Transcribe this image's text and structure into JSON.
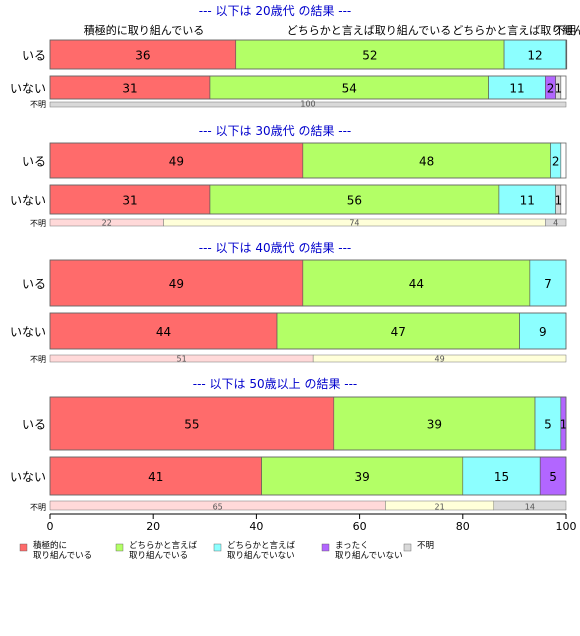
{
  "chart_data": {
    "type": "bar",
    "orientation": "horizontal",
    "stacked": true,
    "xlim": [
      0,
      100
    ],
    "x_ticks": [
      0,
      20,
      40,
      60,
      80,
      100
    ],
    "categories": [
      "積極的に\n取り組んでいる",
      "どちらかと言えば\n取り組んでいる",
      "どちらかと言えば\n取り組んでいない",
      "まったく\n取り組んでいない",
      "不明"
    ],
    "header_labels": [
      "積極的に取り組んでいる",
      "どちらかと言えば取り組んでいる",
      "どちらかと言えば取り組んでいない",
      "不明"
    ],
    "colors": [
      "#ff6b6b",
      "#b3ff66",
      "#8cffff",
      "#b266ff",
      "#d9d9d9"
    ],
    "unknown_colors": [
      "#ffd9d9",
      "#ffffd9",
      "#d9d9d9"
    ],
    "legend_position": "bottom",
    "groups": [
      {
        "title": "--- 以下は 20歳代 の結果 ---",
        "rows": [
          {
            "label": "いる",
            "values": [
              36,
              52,
              12,
              0,
              0.4
            ]
          },
          {
            "label": "いない",
            "values": [
              31,
              54,
              11,
              2,
              1
            ]
          }
        ],
        "unknown": {
          "label": "不明",
          "values": [
            0,
            0,
            100
          ]
        }
      },
      {
        "title": "--- 以下は 30歳代 の結果 ---",
        "rows": [
          {
            "label": "いる",
            "values": [
              49,
              48,
              2,
              0,
              0
            ]
          },
          {
            "label": "いない",
            "values": [
              31,
              56,
              11,
              0,
              1
            ]
          }
        ],
        "unknown": {
          "label": "不明",
          "values": [
            22,
            74,
            4
          ]
        }
      },
      {
        "title": "--- 以下は 40歳代 の結果 ---",
        "rows": [
          {
            "label": "いる",
            "values": [
              49,
              44,
              7,
              0,
              0
            ]
          },
          {
            "label": "いない",
            "values": [
              44,
              47,
              9,
              0,
              0
            ]
          }
        ],
        "unknown": {
          "label": "不明",
          "values": [
            51,
            49,
            0
          ]
        }
      },
      {
        "title": "--- 以下は 50歳以上 の結果 ---",
        "rows": [
          {
            "label": "いる",
            "values": [
              55,
              39,
              5,
              1,
              0
            ]
          },
          {
            "label": "いない",
            "values": [
              41,
              39,
              15,
              5,
              0
            ]
          }
        ],
        "unknown": {
          "label": "不明",
          "values": [
            65,
            21,
            14
          ]
        }
      }
    ]
  }
}
